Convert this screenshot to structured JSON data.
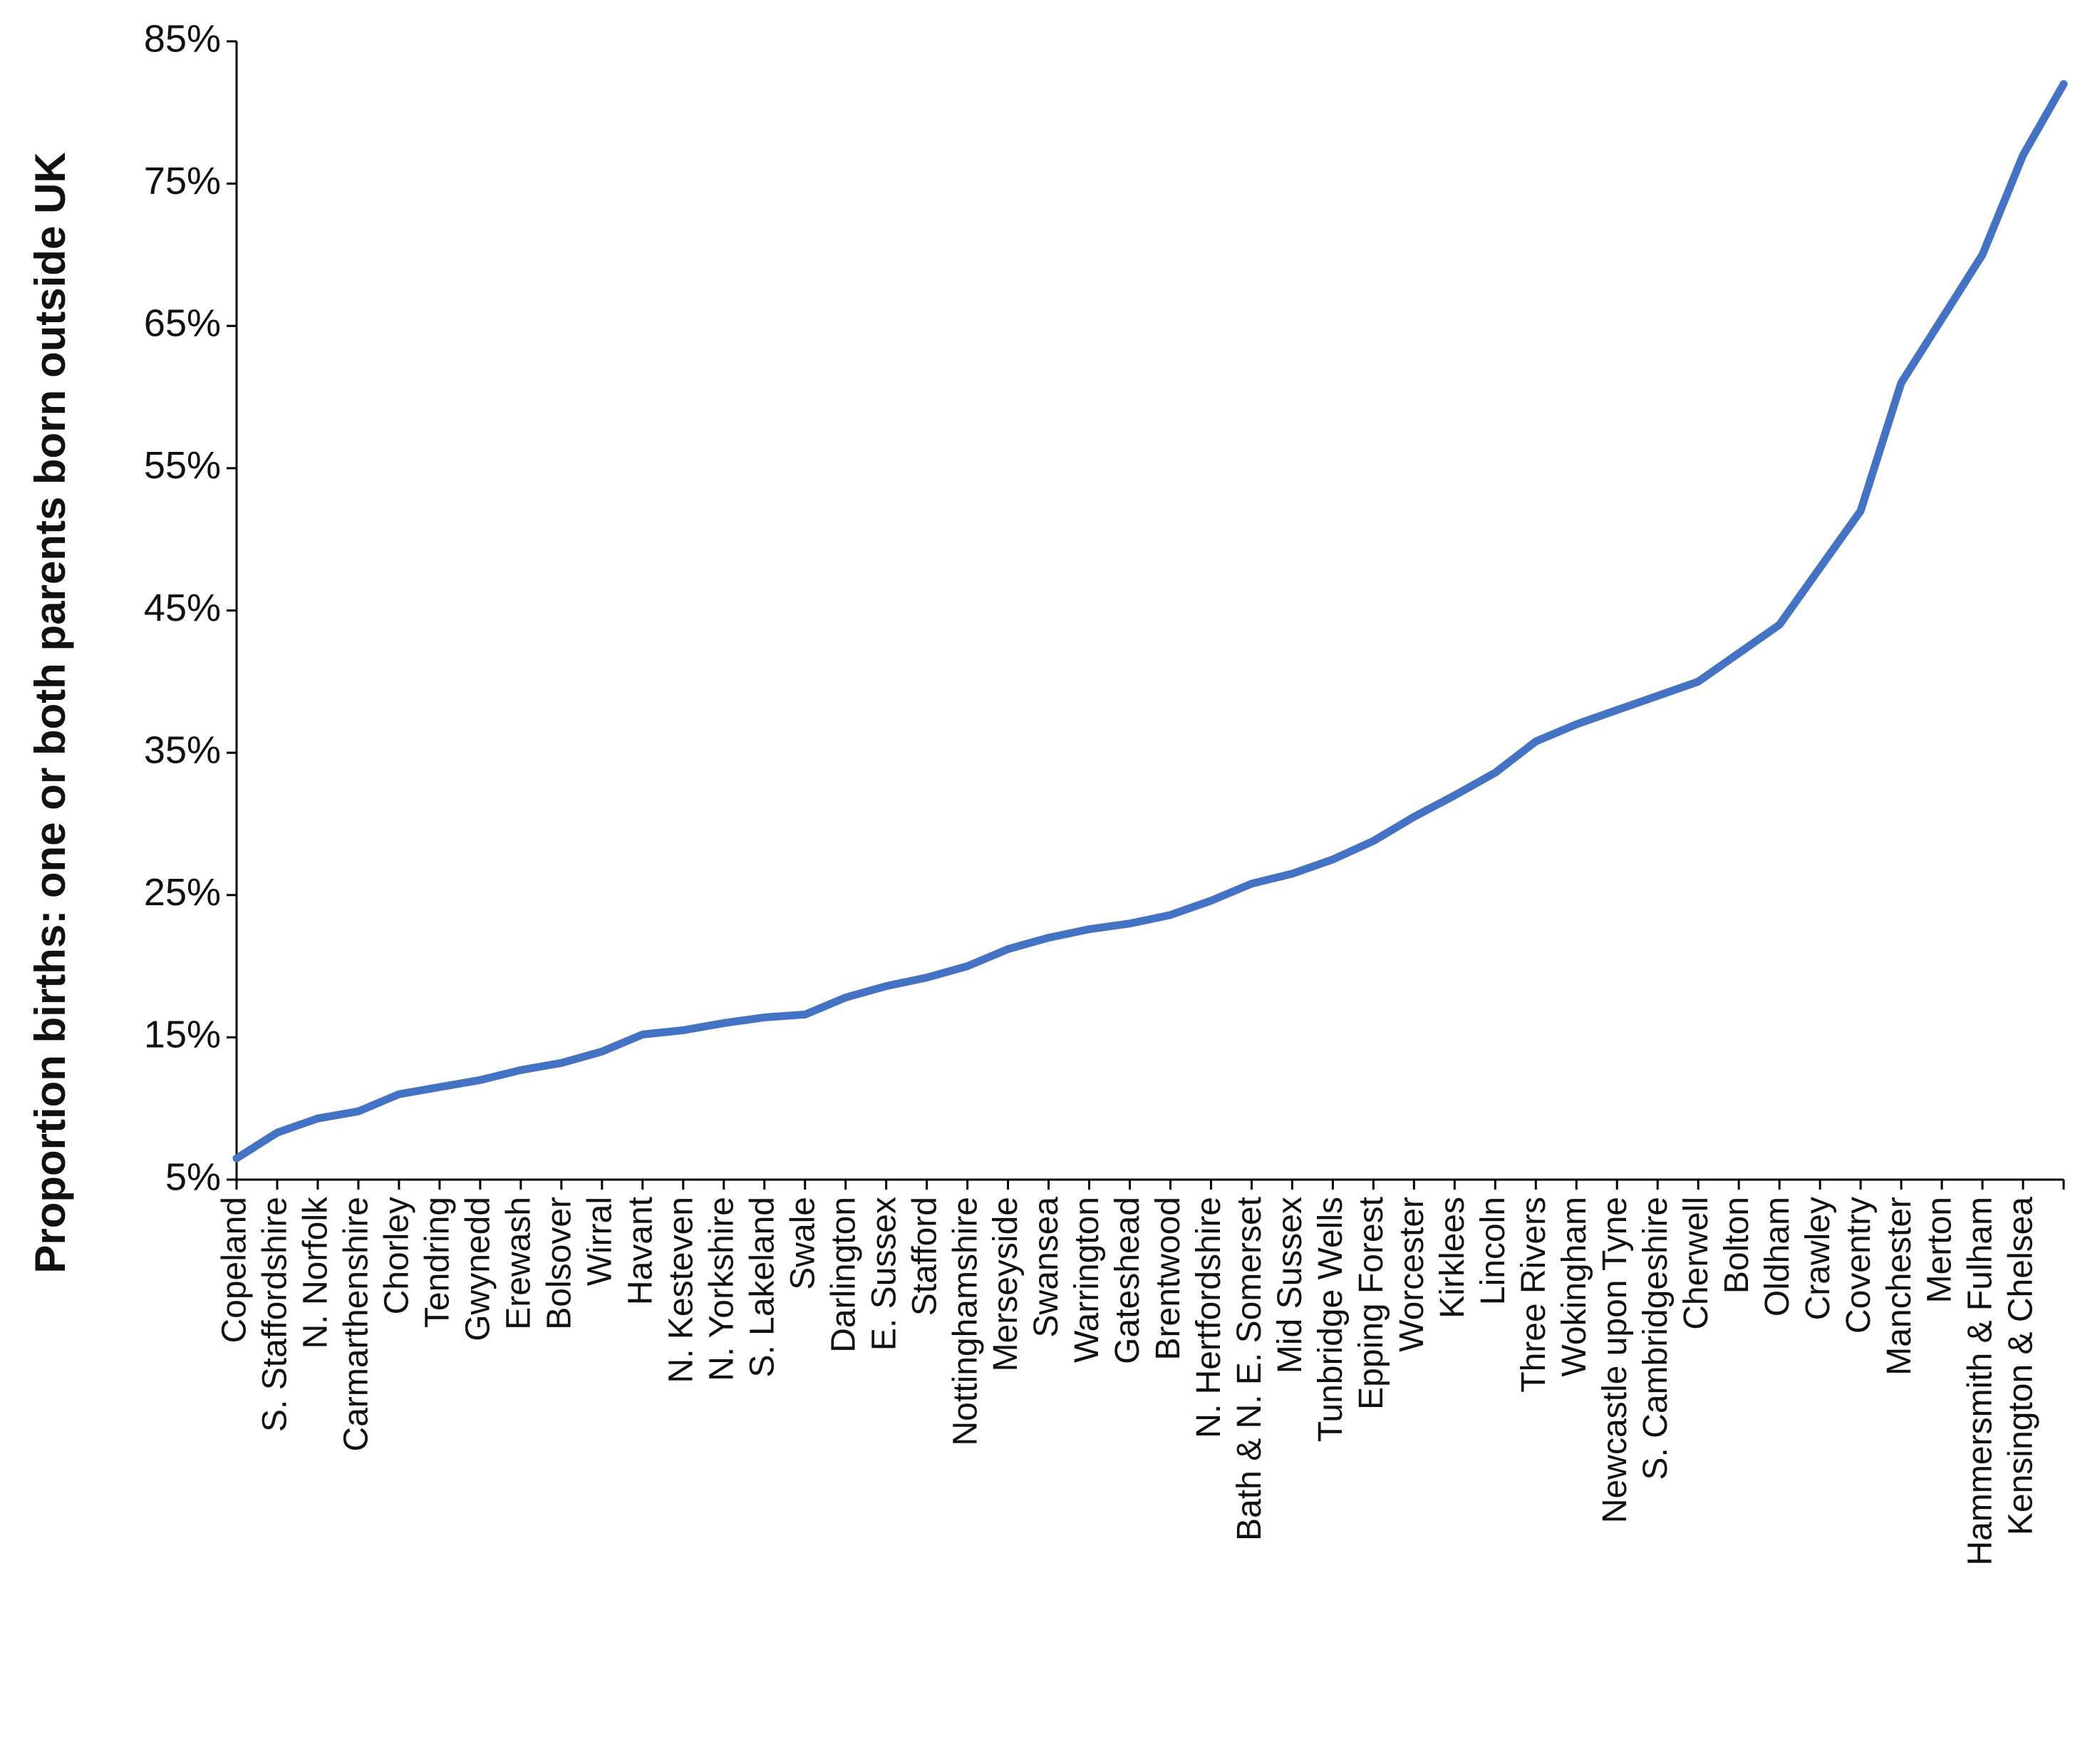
{
  "chart_data": {
    "type": "line",
    "y_label": "Proportion births: one or both parents born outside UK",
    "categories": [
      "Copeland",
      "S. Staffordshire",
      "N. Norfolk",
      "Carmarthenshire",
      "Chorley",
      "Tendring",
      "Gwynedd",
      "Erewash",
      "Bolsover",
      "Wirral",
      "Havant",
      "N. Kesteven",
      "N. Yorkshire",
      "S. Lakeland",
      "Swale",
      "Darlington",
      "E. Sussex",
      "Stafford",
      "Nottinghamshire",
      "Merseyside",
      "Swansea",
      "Warrington",
      "Gateshead",
      "Brentwood",
      "N. Hertfordshire",
      "Bath & N. E. Somerset",
      "Mid Sussex",
      "Tunbridge Wells",
      "Epping Forest",
      "Worcester",
      "Kirklees",
      "Lincoln",
      "Three Rivers",
      "Wokingham",
      "Newcastle upon Tyne",
      "S. Cambridgeshire",
      "Cherwell",
      "Bolton",
      "Oldham",
      "Crawley",
      "Coventry",
      "Manchester",
      "Merton",
      "Hammersmith & Fulham",
      "Kensington & Chelsea",
      null
    ],
    "values": [
      6.5,
      8.3,
      9.3,
      9.8,
      11,
      11.5,
      12,
      12.7,
      13.2,
      14,
      15.2,
      15.5,
      16,
      16.4,
      16.6,
      17.8,
      18.6,
      19.2,
      20,
      21.2,
      22,
      22.6,
      23,
      23.6,
      24.6,
      25.8,
      26.5,
      27.5,
      28.8,
      30.5,
      32,
      33.6,
      35.8,
      37,
      38,
      39,
      40,
      42,
      44,
      48,
      52,
      61,
      65.5,
      70,
      77,
      82
    ],
    "color": "#4472c4",
    "ylim": [
      5,
      85
    ],
    "yticks": [
      {
        "value": 5,
        "label": "5%"
      },
      {
        "value": 15,
        "label": "15%"
      },
      {
        "value": 25,
        "label": "25%"
      },
      {
        "value": 35,
        "label": "35%"
      },
      {
        "value": 45,
        "label": "45%"
      },
      {
        "value": 55,
        "label": "55%"
      },
      {
        "value": 65,
        "label": "65%"
      },
      {
        "value": 75,
        "label": "75%"
      },
      {
        "value": 85,
        "label": "85%"
      }
    ],
    "grid": false
  }
}
